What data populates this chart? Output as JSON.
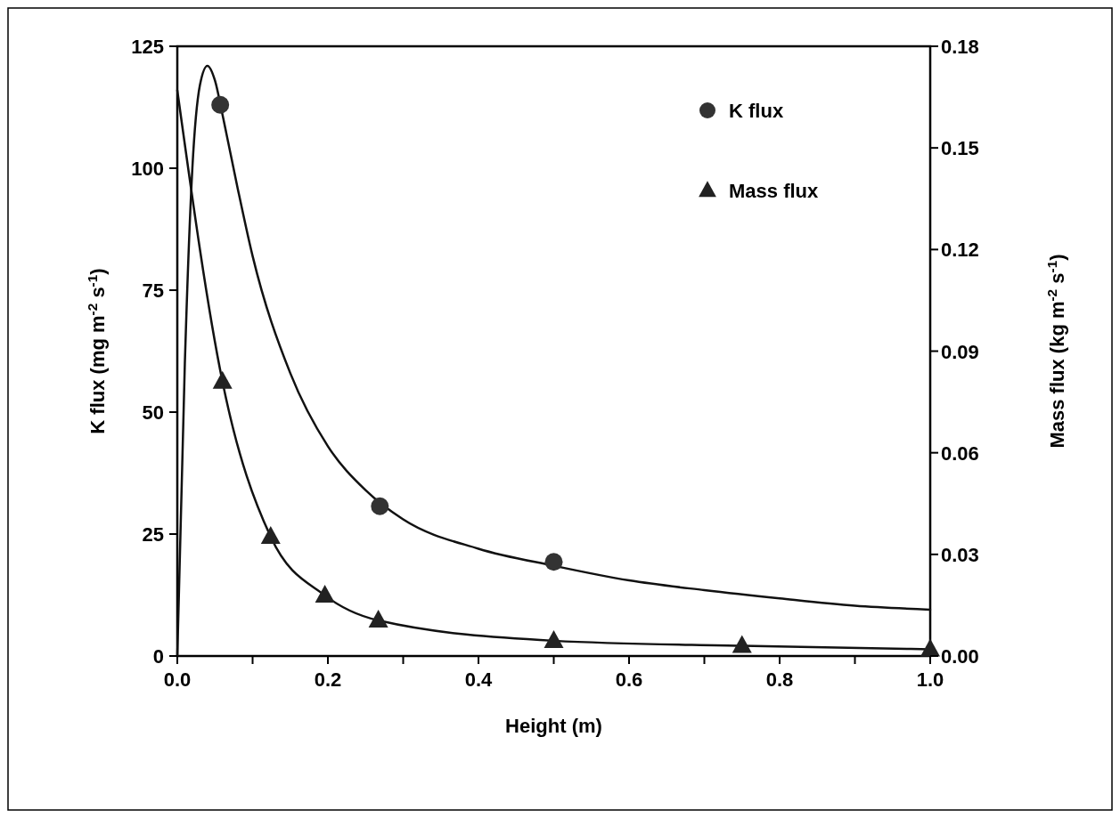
{
  "chart_data": {
    "type": "scatter",
    "xlabel": "Height (m)",
    "ylabel": "K flux (mg m$^{-2}$ s$^{-1}$)",
    "y2label": "Mass flux (kg m$^{-2}$ s$^{-1}$)",
    "xlim": [
      0,
      1
    ],
    "xticks": [
      {
        "value": 0,
        "label": "0.0"
      },
      {
        "value": 0.1,
        "label": null
      },
      {
        "value": 0.2,
        "label": "0.2"
      },
      {
        "value": 0.3,
        "label": null
      },
      {
        "value": 0.4,
        "label": "0.4"
      },
      {
        "value": 0.5,
        "label": null
      },
      {
        "value": 0.6,
        "label": "0.6"
      },
      {
        "value": 0.7,
        "label": null
      },
      {
        "value": 0.8,
        "label": "0.8"
      },
      {
        "value": 0.9,
        "label": null
      },
      {
        "value": 1,
        "label": "1.0"
      }
    ],
    "ylim": [
      0,
      125
    ],
    "yticks": [
      0,
      25,
      50,
      75,
      100,
      125
    ],
    "y2lim": [
      0,
      0.18
    ],
    "y2ticks": [
      {
        "value": 0,
        "label": "0.00"
      },
      {
        "value": 0.03,
        "label": "0.03"
      },
      {
        "value": 0.06,
        "label": "0.06"
      },
      {
        "value": 0.09,
        "label": "0.09"
      },
      {
        "value": 0.12,
        "label": "0.12"
      },
      {
        "value": 0.15,
        "label": "0.15"
      },
      {
        "value": 0.18,
        "label": "0.18"
      }
    ],
    "grid": false,
    "legend": "top right",
    "series": [
      {
        "name": "K flux",
        "marker": "circle",
        "color": "#333333",
        "x": [
          0.057,
          0.269,
          0.5
        ],
        "values": [
          113,
          30.7,
          19.3
        ]
      },
      {
        "name": "Mass flux",
        "marker": "triangle",
        "axis": "y2",
        "color": "#222222",
        "x": [
          0.06,
          0.124,
          0.196,
          0.267,
          0.5,
          0.75,
          1.0
        ],
        "values": [
          0.081,
          0.0352,
          0.0179,
          0.0105,
          0.0045,
          0.003,
          0.002
        ]
      },
      {
        "type": "line",
        "color": "#111111",
        "x": [
          0,
          0.01,
          0.02,
          0.03,
          0.04,
          0.05,
          0.06,
          0.08,
          0.1,
          0.15,
          0.2,
          0.25,
          0.3,
          0.4,
          0.5,
          0.6,
          0.7,
          0.8,
          0.9,
          1.0
        ],
        "values": [
          0,
          60,
          100,
          117,
          121,
          118,
          111,
          96,
          82,
          58,
          43,
          34,
          28,
          22,
          18.5,
          15.5,
          13.5,
          11.8,
          10.3,
          9.5
        ]
      },
      {
        "type": "line",
        "color": "#111111",
        "axis": "y2",
        "x": [
          0,
          0.06,
          0.124,
          0.196,
          0.267,
          0.5,
          0.75,
          1.0
        ],
        "values": [
          0.167,
          0.081,
          0.0352,
          0.0179,
          0.0105,
          0.0045,
          0.003,
          0.002
        ]
      }
    ]
  }
}
